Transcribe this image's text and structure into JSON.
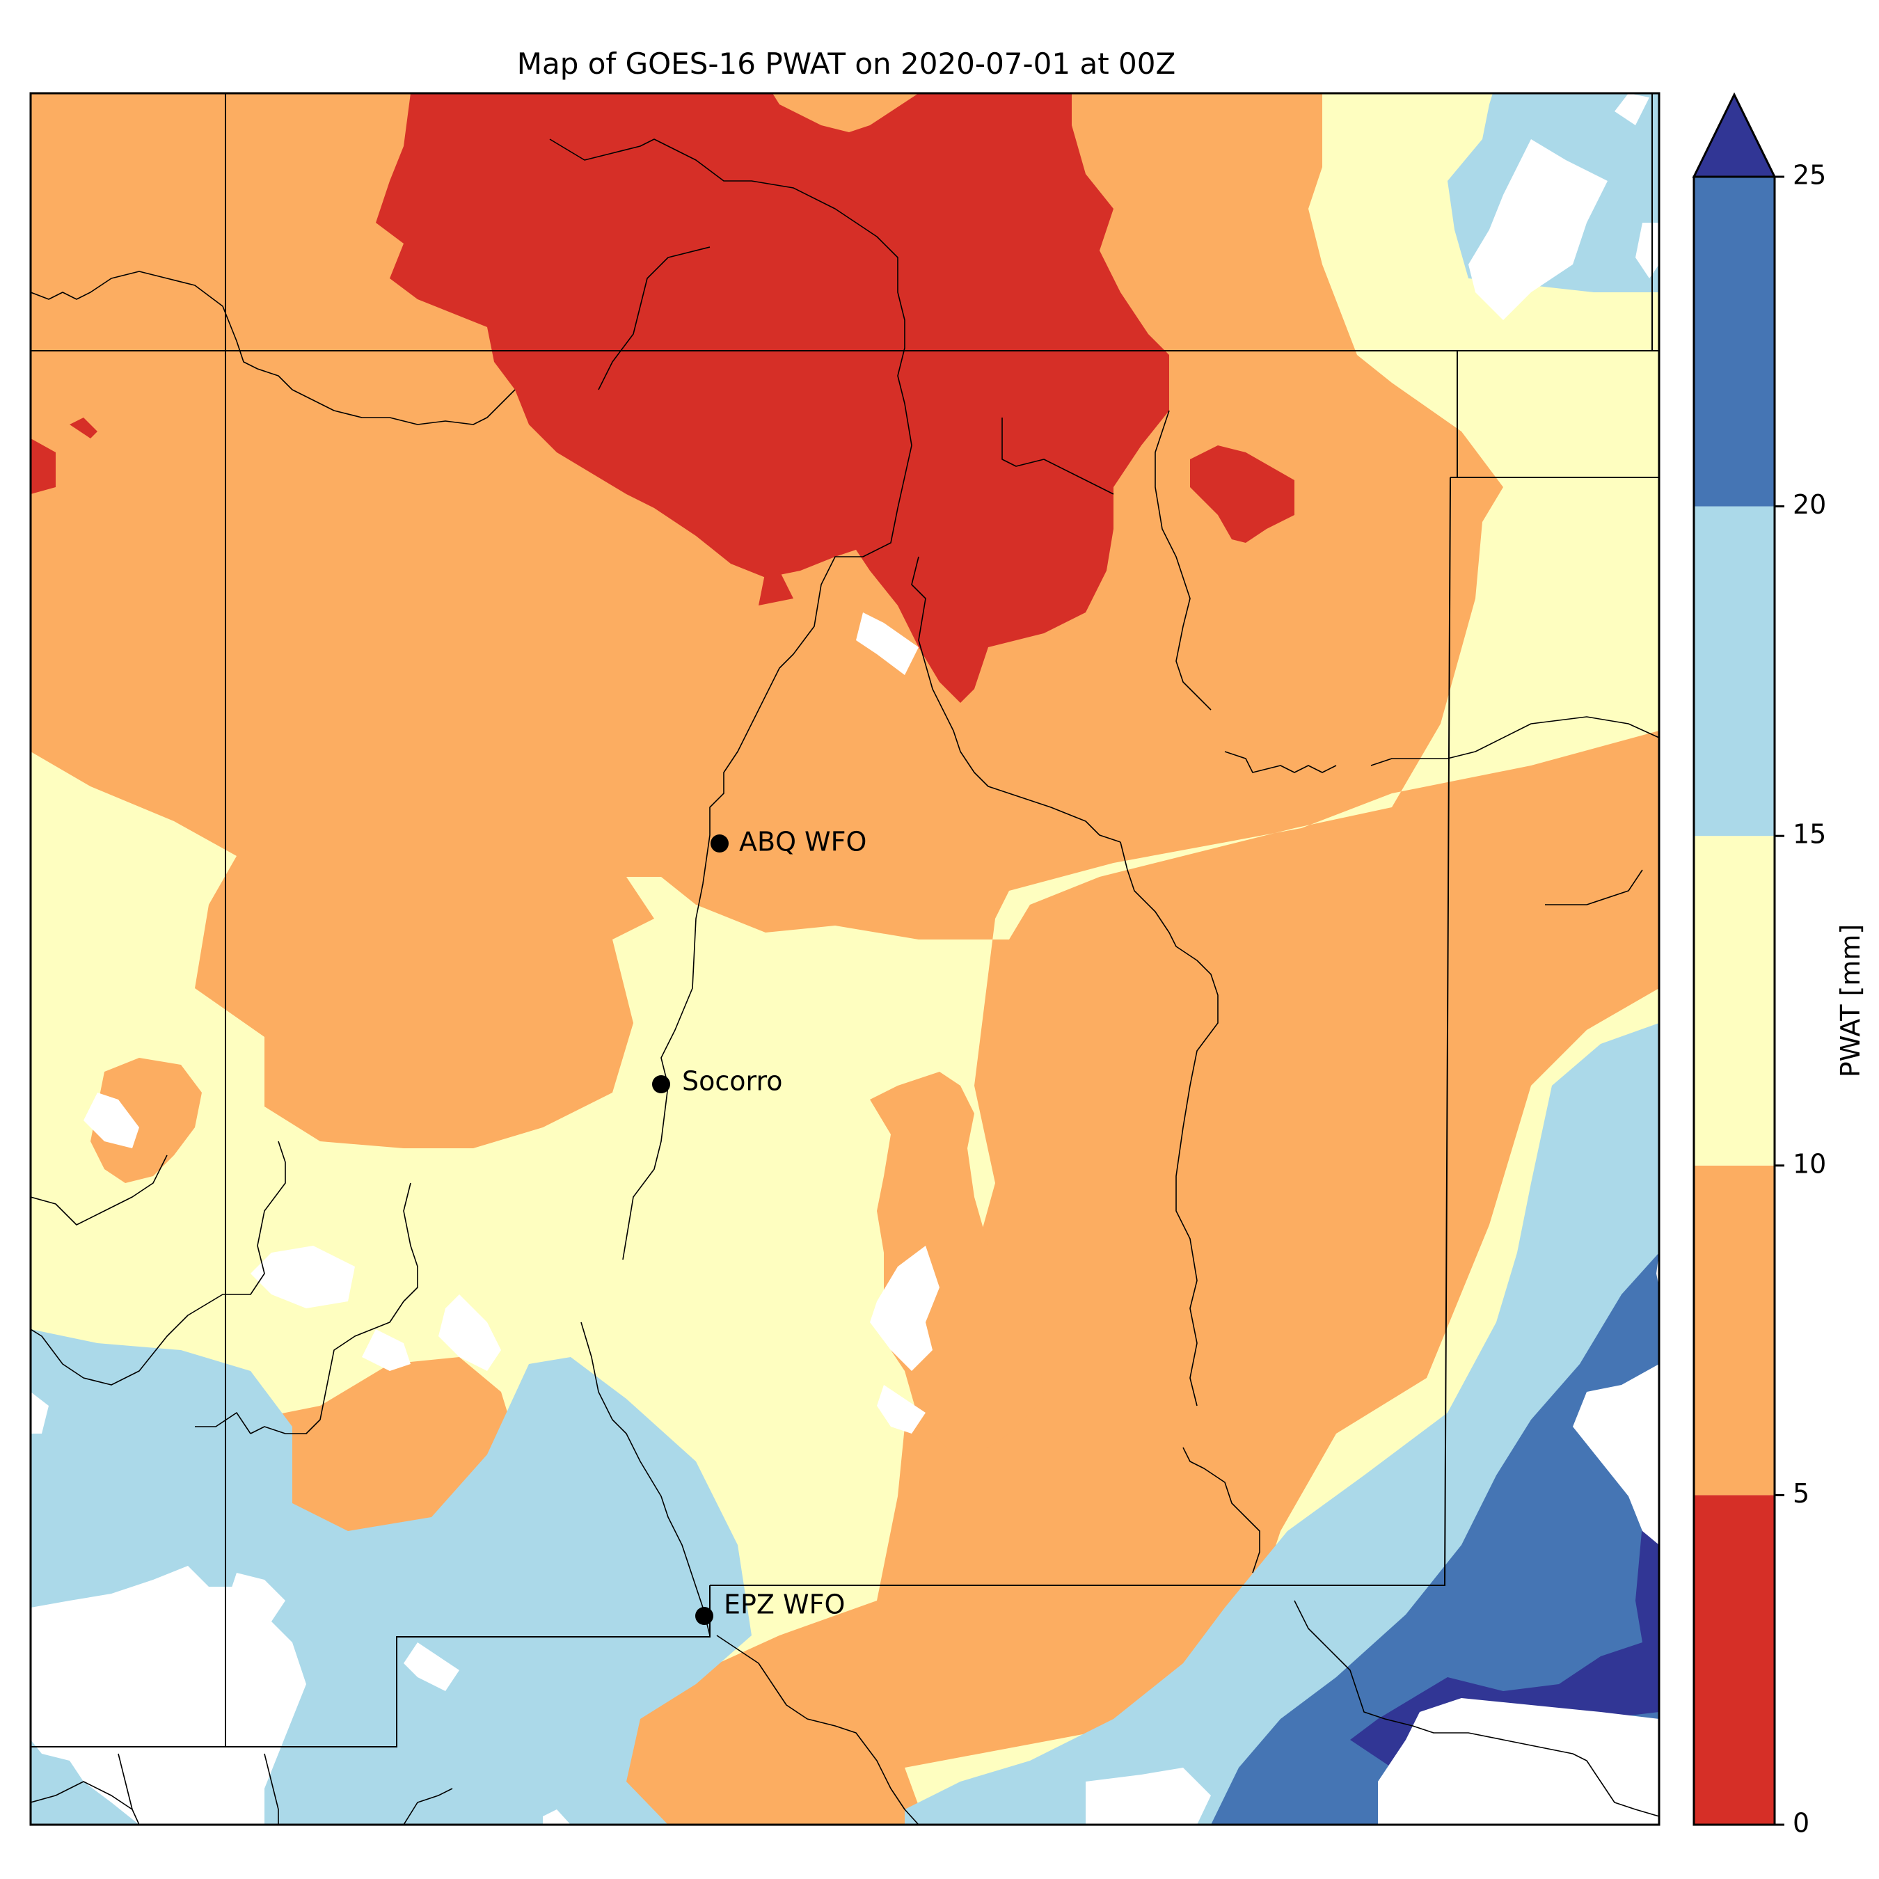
{
  "title": "Map of GOES-16 PWAT on 2020-07-01 at 00Z",
  "colorbar": {
    "label": "PWAT [mm]",
    "ticks": [
      0,
      5,
      10,
      15,
      20,
      25
    ],
    "bins": [
      {
        "from": 0,
        "to": 5,
        "color": "#d62f27"
      },
      {
        "from": 5,
        "to": 10,
        "color": "#fcad61"
      },
      {
        "from": 10,
        "to": 15,
        "color": "#fefec0"
      },
      {
        "from": 15,
        "to": 20,
        "color": "#abd9e9"
      },
      {
        "from": 20,
        "to": 25,
        "color": "#4575b4"
      }
    ],
    "extend_max_color": "#313695"
  },
  "stations": [
    {
      "name": "ABQ WFO"
    },
    {
      "name": "Socorro"
    },
    {
      "name": "EPZ WFO"
    }
  ],
  "colors": {
    "red": "#d62f27",
    "orange": "#fcad61",
    "yellow": "#fefec0",
    "lightblue": "#abd9e9",
    "blue": "#4575b4",
    "navy": "#313695",
    "missing": "#ffffff"
  }
}
